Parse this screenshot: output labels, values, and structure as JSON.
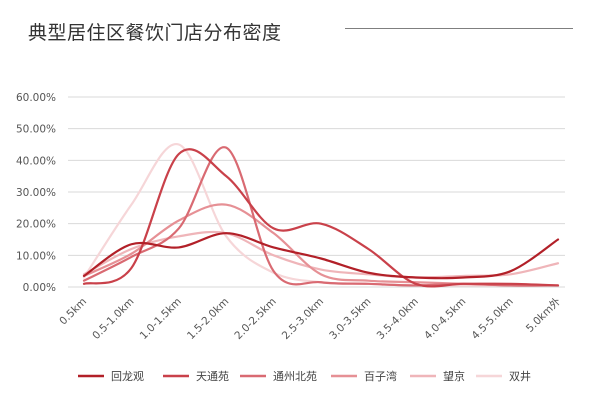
{
  "chart_data": {
    "type": "line",
    "title": "典型居住区餐饮门店分布密度",
    "xlabel": "",
    "ylabel": "",
    "categories": [
      "0.5km",
      "0.5-1.0km",
      "1.0-1.5km",
      "1.5-2.0km",
      "2.0-2.5km",
      "2.5-3.0km",
      "3.0-3.5km",
      "3.5-4.0km",
      "4.0-4.5km",
      "4.5-5.0km",
      "5.0km外"
    ],
    "y_ticks": [
      "0.00%",
      "10.00%",
      "20.00%",
      "30.00%",
      "40.00%",
      "50.00%",
      "60.00%"
    ],
    "ylim": [
      0,
      60
    ],
    "grid": "horizontal",
    "legend_position": "bottom",
    "series": [
      {
        "name": "回龙观",
        "color": "#b22028",
        "values": [
          3.5,
          13.5,
          12.5,
          17.0,
          12.5,
          9.0,
          4.5,
          3.0,
          3.0,
          5.0,
          15.0
        ]
      },
      {
        "name": "天通苑",
        "color": "#c9414a",
        "values": [
          1.0,
          6.0,
          42.0,
          35.0,
          18.5,
          20.0,
          12.0,
          1.0,
          1.0,
          1.0,
          0.5
        ]
      },
      {
        "name": "通州北苑",
        "color": "#d96a72",
        "values": [
          2.0,
          9.5,
          18.5,
          44.0,
          5.0,
          1.5,
          1.0,
          0.5,
          1.0,
          0.5,
          0.5
        ]
      },
      {
        "name": "百子湾",
        "color": "#e69095",
        "values": [
          3.5,
          10.5,
          21.0,
          26.0,
          17.0,
          4.0,
          2.0,
          1.5,
          1.0,
          0.5,
          0.5
        ]
      },
      {
        "name": "望京",
        "color": "#efb5b9",
        "values": [
          4.0,
          12.0,
          16.0,
          17.0,
          10.0,
          5.5,
          4.0,
          3.0,
          3.5,
          4.0,
          7.5
        ]
      },
      {
        "name": "双井",
        "color": "#f6d6d8",
        "values": [
          3.0,
          26.0,
          45.0,
          16.0,
          4.5,
          1.5,
          1.0,
          0.5,
          0.5,
          0.5,
          0.5
        ]
      }
    ]
  }
}
